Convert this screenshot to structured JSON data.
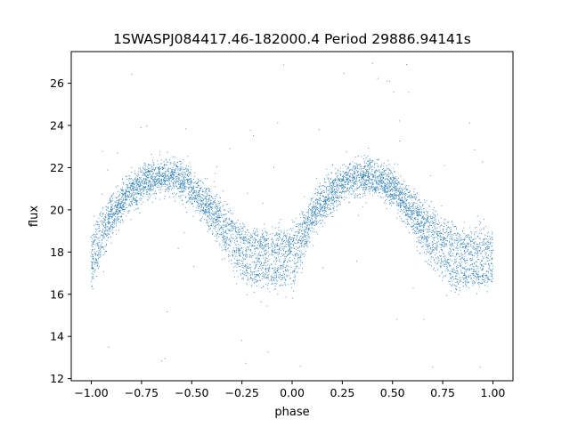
{
  "chart_data": {
    "type": "scatter",
    "title": "1SWASPJ084417.46-182000.4 Period 29886.94141s",
    "xlabel": "phase",
    "ylabel": "flux",
    "xlim": [
      -1.1,
      1.1
    ],
    "ylim": [
      11.9,
      27.5
    ],
    "xticks": [
      -1.0,
      -0.75,
      -0.5,
      -0.25,
      0.0,
      0.25,
      0.5,
      0.75,
      1.0
    ],
    "xtick_labels": [
      "−1.00",
      "−0.75",
      "−0.50",
      "−0.25",
      "0.00",
      "0.25",
      "0.50",
      "0.75",
      "1.00"
    ],
    "yticks": [
      12,
      14,
      16,
      18,
      20,
      22,
      24,
      26
    ],
    "ytick_labels": [
      "12",
      "14",
      "16",
      "18",
      "20",
      "22",
      "24",
      "26"
    ],
    "grid": false,
    "marker_color": "#1f77b4",
    "series": [
      {
        "description": "folded light curve, repeating every 1.0 in phase",
        "x": [
          -1.0,
          -0.9,
          -0.8,
          -0.7,
          -0.6,
          -0.5,
          -0.4,
          -0.3,
          -0.2,
          -0.1,
          0.0,
          0.1,
          0.2,
          0.3,
          0.4,
          0.5,
          0.6,
          0.7,
          0.8,
          0.9,
          1.0
        ],
        "y_upper_band": [
          18.4,
          20.0,
          21.0,
          21.6,
          21.7,
          21.2,
          20.2,
          19.2,
          18.4,
          18.3,
          18.3,
          20.0,
          21.0,
          21.6,
          21.7,
          21.2,
          20.2,
          19.2,
          18.4,
          18.3,
          18.3
        ],
        "y_lower_band": [
          17.0,
          19.5,
          20.7,
          21.4,
          21.5,
          20.8,
          19.6,
          18.0,
          17.0,
          16.9,
          17.0,
          19.5,
          20.7,
          21.4,
          21.5,
          20.8,
          19.6,
          18.0,
          17.0,
          16.9,
          17.0
        ]
      }
    ]
  }
}
